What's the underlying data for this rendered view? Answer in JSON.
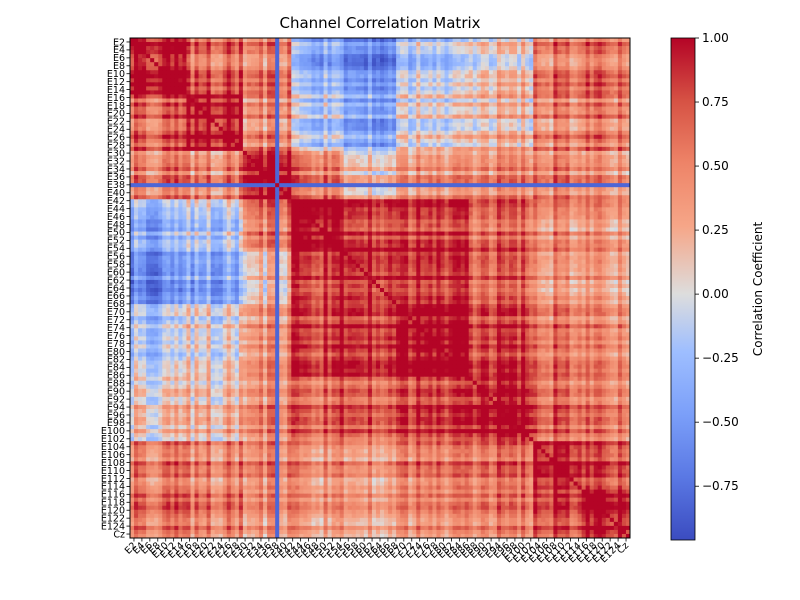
{
  "chart_data": {
    "type": "heatmap",
    "title": "Channel Correlation Matrix",
    "xlabel": "",
    "ylabel": "",
    "colormap": "coolwarm",
    "colormap_colors": {
      "low": "#3b4cc0",
      "mid": "#dddddd",
      "high": "#b40426"
    },
    "vmin": -0.96,
    "vmax": 1.0,
    "colorbar": {
      "label": "Correlation Coefficient",
      "ticks": [
        -0.75,
        -0.5,
        -0.25,
        0.0,
        0.25,
        0.5,
        0.75,
        1.0
      ],
      "tick_labels": [
        "−0.75",
        "−0.50",
        "−0.25",
        "0.00",
        "0.25",
        "0.50",
        "0.75",
        "1.00"
      ]
    },
    "y_tick_labels_visible": [
      "E2",
      "E4",
      "E6",
      "E8",
      "E10",
      "E12",
      "E14",
      "E16",
      "E18",
      "E20",
      "E22",
      "E24",
      "E26",
      "E28",
      "E30",
      "E32",
      "E34",
      "E36",
      "E38",
      "E40",
      "E42",
      "E44",
      "E46",
      "E48",
      "E50",
      "E52",
      "E54",
      "E56",
      "E58",
      "E60",
      "E62",
      "E64",
      "E66",
      "E68",
      "E70",
      "E72",
      "E74",
      "E76",
      "E78",
      "E80",
      "E82",
      "E84",
      "E86",
      "E88",
      "E90",
      "E92",
      "E94",
      "E96",
      "E98",
      "E100",
      "E102",
      "E104",
      "E106",
      "E108",
      "E110",
      "E112",
      "E114",
      "E116",
      "E118",
      "E120",
      "E122",
      "E124",
      "Cz"
    ],
    "channels_count": 124,
    "group_template": [
      {
        "name": "G1",
        "profile": [
          1.0,
          0.65,
          0.5,
          -0.4,
          -0.55,
          -0.2,
          0.1,
          0.55,
          0.6
        ]
      },
      {
        "name": "G2",
        "profile": [
          0.65,
          1.0,
          0.45,
          -0.2,
          -0.35,
          0.0,
          0.2,
          0.5,
          0.55
        ]
      },
      {
        "name": "G3",
        "profile": [
          0.5,
          0.45,
          1.0,
          0.5,
          0.2,
          0.35,
          0.45,
          0.5,
          0.4
        ]
      },
      {
        "name": "G4",
        "profile": [
          -0.4,
          -0.2,
          0.5,
          1.0,
          0.85,
          0.75,
          0.6,
          0.4,
          0.35
        ]
      },
      {
        "name": "G5",
        "profile": [
          -0.55,
          -0.35,
          0.2,
          0.85,
          1.0,
          0.9,
          0.75,
          0.45,
          0.4
        ]
      },
      {
        "name": "G6",
        "profile": [
          -0.2,
          0.0,
          0.35,
          0.75,
          0.9,
          1.0,
          0.8,
          0.55,
          0.45
        ]
      },
      {
        "name": "G7",
        "profile": [
          0.1,
          0.2,
          0.45,
          0.6,
          0.75,
          0.8,
          1.0,
          0.65,
          0.55
        ]
      },
      {
        "name": "G8",
        "profile": [
          0.55,
          0.5,
          0.5,
          0.4,
          0.45,
          0.55,
          0.65,
          1.0,
          0.8
        ]
      },
      {
        "name": "G9",
        "profile": [
          0.6,
          0.55,
          0.4,
          0.35,
          0.4,
          0.45,
          0.55,
          0.8,
          1.0
        ]
      }
    ],
    "group_boundaries": [
      0,
      14,
      28,
      40,
      52,
      66,
      84,
      100,
      112,
      124
    ],
    "anomalous_channel_index": 36,
    "anomalous_channel_correlation": -0.85
  }
}
